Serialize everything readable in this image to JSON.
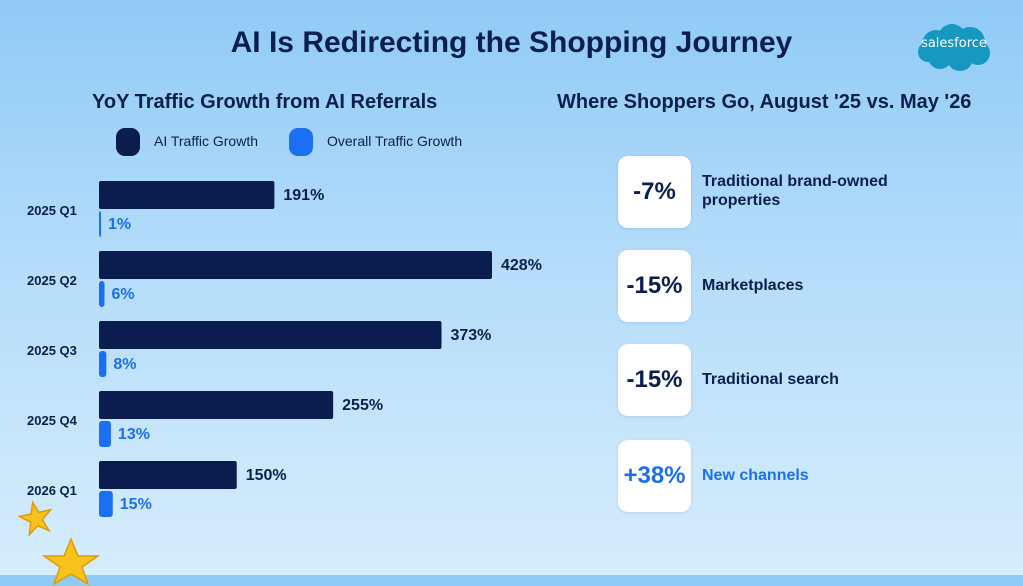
{
  "title": "AI Is Redirecting the Shopping Journey",
  "brand": "salesforce",
  "colors": {
    "ai": "#0b1d4f",
    "overall": "#1a6ff2",
    "text_dark": "#0b1f4d",
    "positive": "#1a6ff2"
  },
  "left_panel": {
    "title": "YoY Traffic Growth from AI Referrals",
    "legend": [
      {
        "label": "AI Traffic Growth",
        "color": "#0b1d4f"
      },
      {
        "label": "Overall Traffic Growth",
        "color": "#1a6ff2"
      }
    ]
  },
  "chart_data": {
    "type": "bar",
    "orientation": "horizontal",
    "title": "YoY Traffic Growth from AI Referrals",
    "categories": [
      "2025 Q1",
      "2025 Q2",
      "2025 Q3",
      "2025 Q4",
      "2026 Q1"
    ],
    "series": [
      {
        "name": "AI Traffic Growth",
        "values": [
          191,
          428,
          373,
          255,
          150
        ],
        "labels": [
          "191%",
          "428%",
          "373%",
          "255%",
          "150%"
        ],
        "color": "#0b1d4f"
      },
      {
        "name": "Overall Traffic Growth",
        "values": [
          1,
          6,
          8,
          13,
          15
        ],
        "labels": [
          "1%",
          "6%",
          "8%",
          "13%",
          "15%"
        ],
        "color": "#1a6ff2"
      }
    ],
    "unit": "%",
    "xlim": [
      0,
      450
    ],
    "grid": false,
    "legend": "top"
  },
  "right_panel": {
    "title": "Where Shoppers Go, August '25 vs. May '26",
    "items": [
      {
        "value": "-7%",
        "label": "Traditional brand-owned properties",
        "highlight": false
      },
      {
        "value": "-15%",
        "label": "Marketplaces",
        "highlight": false
      },
      {
        "value": "-15%",
        "label": "Traditional search",
        "highlight": false
      },
      {
        "value": "+38%",
        "label": "New channels",
        "highlight": true
      }
    ]
  }
}
